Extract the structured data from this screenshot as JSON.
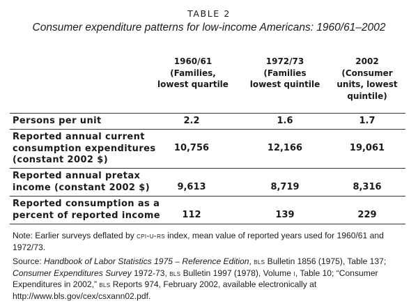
{
  "table_label": "TABLE 2",
  "title": "Consumer expenditure patterns for low-income Americans: 1960/61–2002",
  "columns": [
    {
      "lines": [
        "1960/61",
        "(Families,",
        "lowest quartile"
      ]
    },
    {
      "lines": [
        "1972/73",
        "(Families",
        "lowest quintile"
      ]
    },
    {
      "lines": [
        "2002",
        "(Consumer",
        "units, lowest",
        "quintile)"
      ]
    }
  ],
  "rows": [
    {
      "label_lines": [
        "Persons per unit"
      ],
      "values": [
        "2.2",
        "1.6",
        "1.7"
      ]
    },
    {
      "label_lines": [
        "Reported annual current",
        "consumption expenditures",
        "(constant 2002 $)"
      ],
      "values": [
        "10,756",
        "12,166",
        "19,061"
      ]
    },
    {
      "label_lines": [
        "Reported annual pretax",
        "income (constant 2002 $)"
      ],
      "values": [
        "9,613",
        "8,719",
        "8,316"
      ]
    },
    {
      "label_lines": [
        "Reported consumption as a",
        "percent of reported income"
      ],
      "values": [
        "112",
        "139",
        "229"
      ]
    }
  ],
  "note": {
    "prefix": "Note: Earlier surveys deflated by ",
    "index_name": "cpi-u-rs",
    "middle": " index, mean value of reported years used for ",
    "year1": "1960/61",
    "and": " and ",
    "year2": "1972/73",
    "end": "."
  },
  "source": {
    "s1": "Source: ",
    "s2": "Handbook of Labor Statistics 1975 – Reference Edition",
    "s3": ", ",
    "s4": "bls",
    "s5": " Bulletin 1856 (1975), Table 137; ",
    "s6": "Consumer Expenditures Survey",
    "s7": " 1972-73, ",
    "s8": "bls",
    "s9": " Bulletin 1997 (1978), Volume ",
    "s10": "i",
    "s11": ", Table 10; “Consumer Expenditures in 2002,” ",
    "s12": "bls",
    "s13": " Reports 974, February 2002, available electronically at http://www.bls.gov/cex/csxann02.pdf."
  }
}
